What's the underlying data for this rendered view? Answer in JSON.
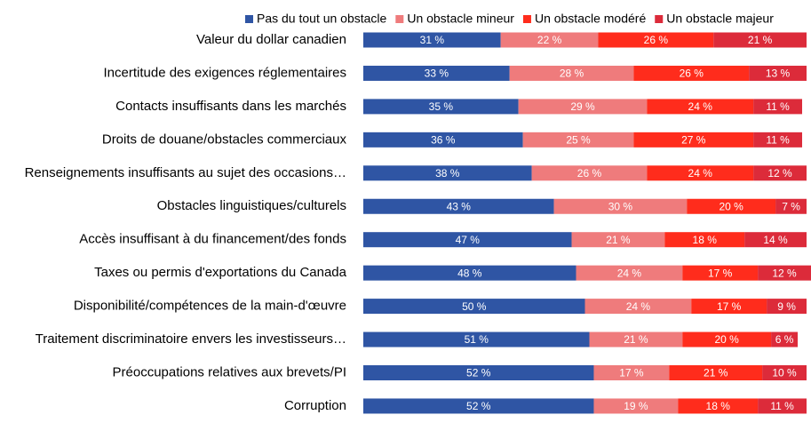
{
  "chart_data": {
    "type": "stacked-bar-horizontal",
    "categories": [
      "Valeur du dollar canadien",
      "Incertitude des exigences réglementaires",
      "Contacts insuffisants dans les marchés",
      "Droits de douane/obstacles commerciaux",
      "Renseignements insuffisants au sujet des occasions…",
      "Obstacles linguistiques/culturels",
      "Accès insuffisant à du financement/des fonds",
      "Taxes ou permis d'exportations du Canada",
      "Disponibilité/compétences de la main-d'œuvre",
      "Traitement discriminatoire envers les investisseurs…",
      "Préoccupations relatives aux brevets/PI",
      "Corruption"
    ],
    "series": [
      {
        "name": "Pas du tout un obstacle",
        "color": "#2f55a4",
        "values": [
          31,
          33,
          35,
          36,
          38,
          43,
          47,
          48,
          50,
          51,
          52,
          52
        ],
        "value_labels": [
          "31 %",
          "33 %",
          "35 %",
          "36 %",
          "38 %",
          "43 %",
          "47 %",
          "48 %",
          "50 %",
          "51 %",
          "52 %",
          "52 %"
        ]
      },
      {
        "name": "Un obstacle mineur",
        "color": "#ef7b7c",
        "values": [
          22,
          28,
          29,
          25,
          26,
          30,
          21,
          24,
          24,
          21,
          17,
          19
        ],
        "value_labels": [
          "22 %",
          "28 %",
          "29 %",
          "25 %",
          "26 %",
          "30 %",
          "21 %",
          "24 %",
          "24 %",
          "21 %",
          "17 %",
          "19 %"
        ]
      },
      {
        "name": "Un obstacle modéré",
        "color": "#ff2c1c",
        "values": [
          26,
          26,
          24,
          27,
          24,
          20,
          18,
          17,
          17,
          20,
          21,
          18
        ],
        "value_labels": [
          "26 %",
          "26 %",
          "24 %",
          "27 %",
          "24 %",
          "20 %",
          "18 %",
          "17 %",
          "17 %",
          "20 %",
          "21 %",
          "18 %"
        ]
      },
      {
        "name": "Un obstacle majeur",
        "color": "#dc2b3a",
        "values": [
          21,
          13,
          11,
          11,
          12,
          7,
          14,
          12,
          9,
          6,
          10,
          11
        ],
        "value_labels": [
          "21 %",
          "13 %",
          "11 %",
          "11 %",
          "12 %",
          "7 %",
          "14 %",
          "12 %",
          "9 %",
          "6 %",
          "10 %",
          "11 %"
        ]
      }
    ],
    "legend": "top"
  }
}
